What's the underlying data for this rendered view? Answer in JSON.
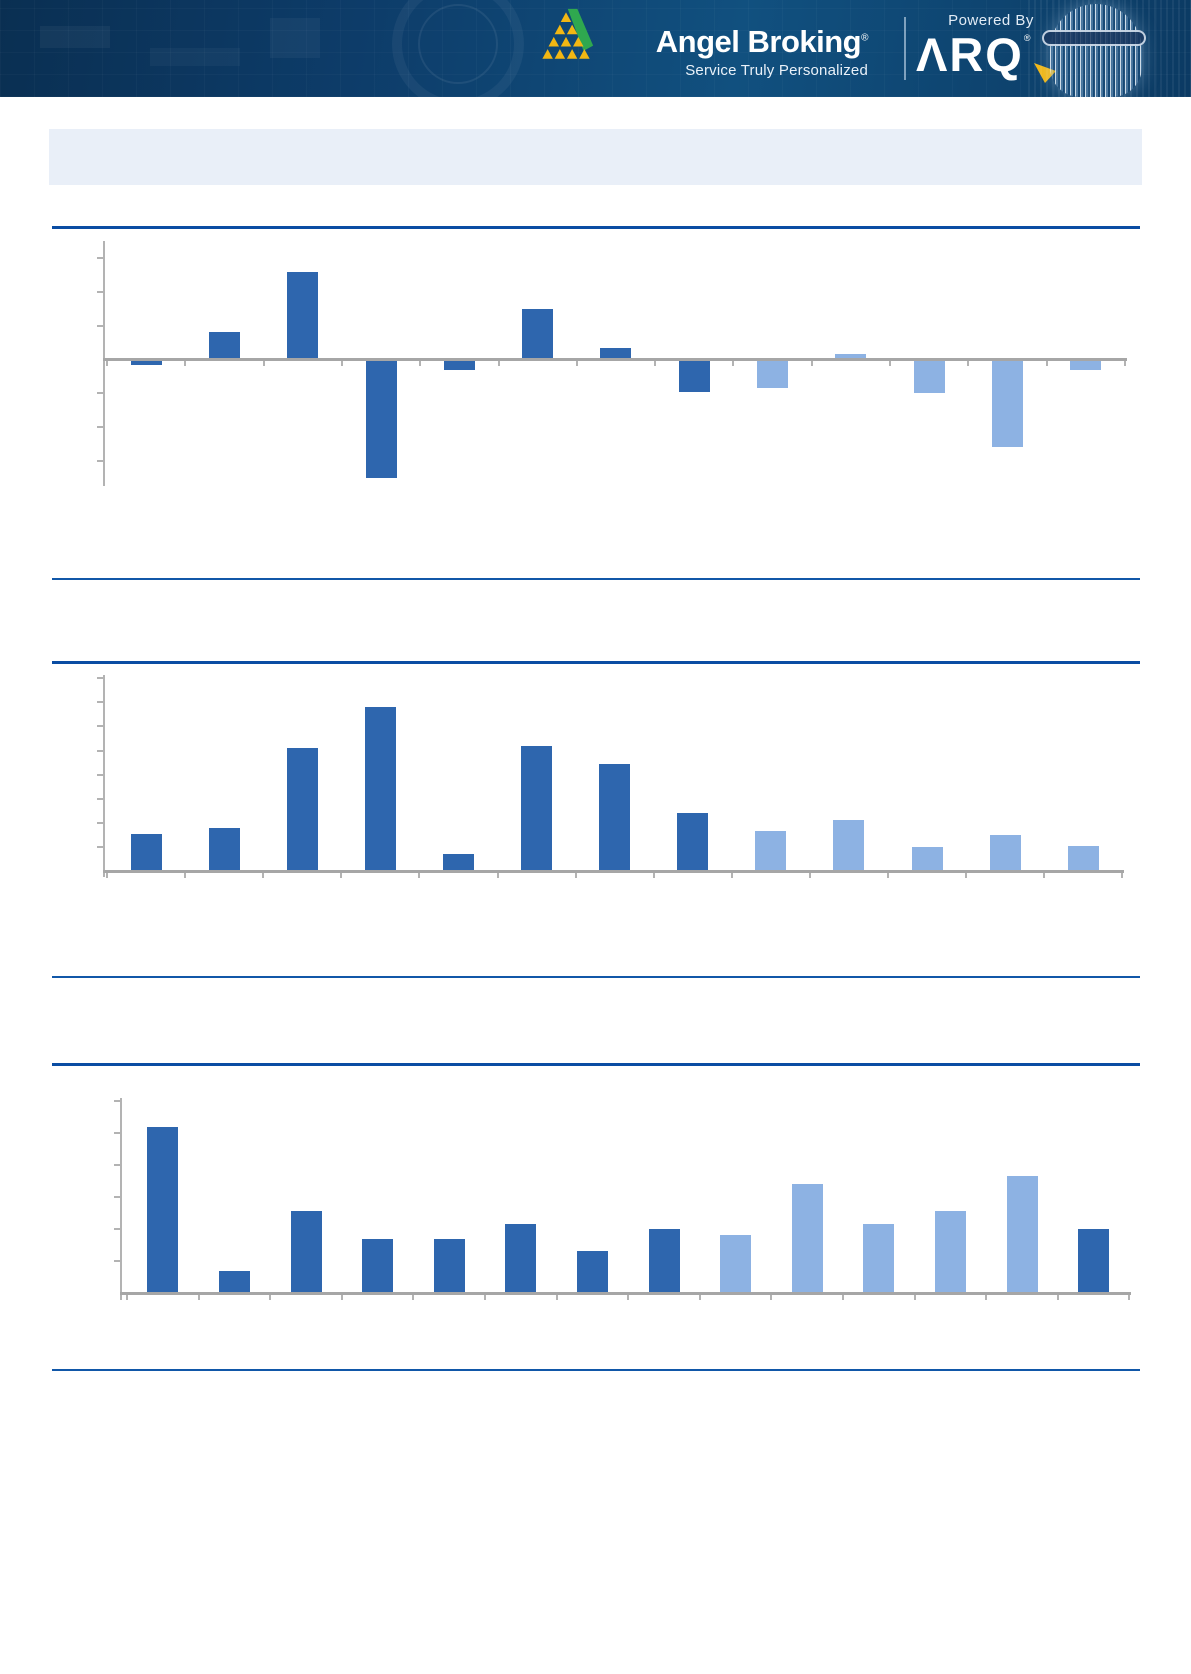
{
  "header": {
    "brand": {
      "name": "Angel Broking",
      "registered_mark": "®",
      "tagline": "Service Truly Personalized",
      "logo": "angel-broking-pyramid-logo",
      "logo_yellow": "#f2b713",
      "logo_green": "#2fa84f"
    },
    "powered_by": {
      "label": "Powered By",
      "product": "ARQ",
      "registered_mark": "®",
      "arrow_color": "#f2b713"
    },
    "background_colors": [
      "#0a2f52",
      "#11507f",
      "#0b3a63"
    ]
  },
  "page": {
    "background": "#ffffff",
    "banner_color": "#e9eff8",
    "divider_thick_color": "#0a4da3",
    "divider_thin_color": "#1157a8",
    "note": "No chart titles, axis labels or body text are rendered in the screenshot; only axes, gridline ticks and bars are visible. Bar values are estimated in gridline units."
  },
  "palette": {
    "d": "#2e66ae",
    "l": "#8db2e3",
    "axis": "#a6a6a6",
    "tick": "#b3b3b3"
  },
  "chart_data": [
    {
      "type": "bar",
      "title": "",
      "xlabel": "",
      "ylabel": "",
      "labels_visible": false,
      "categories": [
        "",
        "",
        "",
        "",
        "",
        "",
        "",
        "",
        "",
        "",
        "",
        "",
        ""
      ],
      "values": [
        -0.15,
        0.8,
        2.6,
        -3.5,
        -0.3,
        1.5,
        0.35,
        -0.95,
        -0.85,
        0.15,
        -1.0,
        -2.6,
        -0.3
      ],
      "bar_color_keys": [
        "d",
        "d",
        "d",
        "d",
        "d",
        "d",
        "d",
        "d",
        "l",
        "l",
        "l",
        "l",
        "l"
      ],
      "yticks": [
        3,
        2,
        1,
        -1,
        -2,
        -3
      ],
      "ylim": [
        -3.75,
        3.5
      ],
      "grid": false,
      "legend": "none",
      "value_unit": "gridline-intervals"
    },
    {
      "type": "bar",
      "title": "",
      "xlabel": "",
      "ylabel": "",
      "labels_visible": false,
      "categories": [
        "",
        "",
        "",
        "",
        "",
        "",
        "",
        "",
        "",
        "",
        "",
        "",
        ""
      ],
      "values": [
        1.55,
        1.8,
        5.1,
        6.8,
        0.7,
        5.2,
        4.45,
        2.4,
        1.65,
        2.1,
        1.0,
        1.5,
        1.05
      ],
      "bar_color_keys": [
        "d",
        "d",
        "d",
        "d",
        "d",
        "d",
        "d",
        "d",
        "l",
        "l",
        "l",
        "l",
        "l"
      ],
      "yticks": [
        8,
        7,
        6,
        5,
        4,
        3,
        2,
        1
      ],
      "ylim": [
        0,
        8.1
      ],
      "grid": false,
      "legend": "none",
      "value_unit": "gridline-intervals"
    },
    {
      "type": "bar",
      "title": "",
      "xlabel": "",
      "ylabel": "",
      "labels_visible": false,
      "categories": [
        "",
        "",
        "",
        "",
        "",
        "",
        "",
        "",
        "",
        "",
        "",
        "",
        "",
        ""
      ],
      "values": [
        5.2,
        0.7,
        2.55,
        1.7,
        1.7,
        2.15,
        1.3,
        2.0,
        1.8,
        3.4,
        2.15,
        2.55,
        3.65,
        2.0
      ],
      "bar_color_keys": [
        "d",
        "d",
        "d",
        "d",
        "d",
        "d",
        "d",
        "d",
        "l",
        "l",
        "l",
        "l",
        "l",
        "d"
      ],
      "yticks": [
        6,
        5,
        4,
        3,
        2,
        1
      ],
      "ylim": [
        0,
        6.1
      ],
      "grid": false,
      "legend": "none",
      "value_unit": "gridline-intervals"
    }
  ]
}
